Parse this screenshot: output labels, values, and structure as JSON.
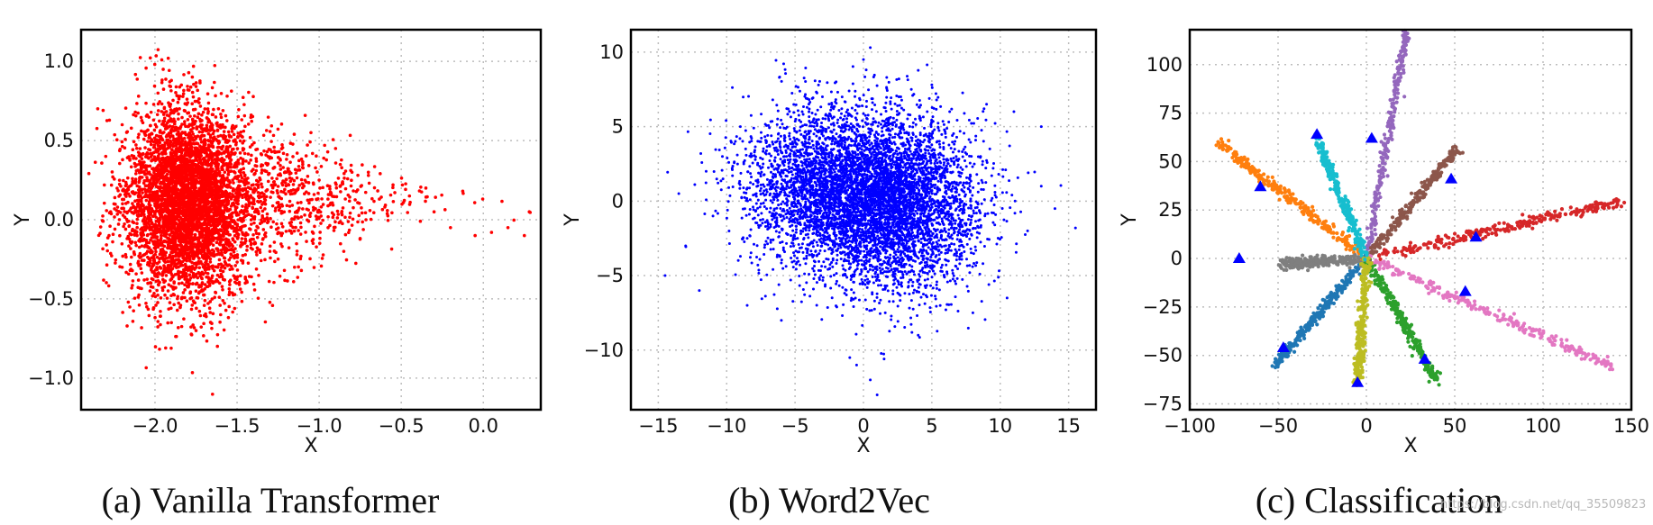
{
  "watermark": "https://blog.csdn.net/qq_35509823",
  "chart_data": [
    {
      "type": "scatter",
      "caption": "(a) Vanilla Transformer",
      "xlabel": "X",
      "ylabel": "Y",
      "xlim": [
        -2.45,
        0.35
      ],
      "ylim": [
        -1.2,
        1.2
      ],
      "xticks": [
        -2.0,
        -1.5,
        -1.0,
        -0.5,
        0.0
      ],
      "xtick_labels": [
        "−2.0",
        "−1.5",
        "−1.0",
        "−0.5",
        "0.0"
      ],
      "yticks": [
        1.0,
        0.5,
        0.0,
        -0.5,
        -1.0
      ],
      "ytick_labels": [
        "1.0",
        "0.5",
        "0.0",
        "−0.5",
        "−1.0"
      ],
      "grid": true,
      "color": "#ff0000",
      "series": [
        {
          "color": "#ff0000",
          "points": [
            [
              -1.95,
              0.95
            ],
            [
              -1.9,
              0.88
            ],
            [
              -2.1,
              0.78
            ],
            [
              -1.8,
              0.82
            ],
            [
              -2.2,
              0.6
            ],
            [
              -2.3,
              0.4
            ],
            [
              -2.25,
              0.1
            ],
            [
              -2.28,
              -0.1
            ],
            [
              -2.2,
              -0.3
            ],
            [
              -2.05,
              -0.55
            ],
            [
              -1.9,
              -0.65
            ],
            [
              -1.75,
              -0.7
            ],
            [
              -1.6,
              -0.6
            ],
            [
              -1.45,
              -0.4
            ],
            [
              -1.3,
              -0.2
            ],
            [
              -1.2,
              0.3
            ],
            [
              -1.1,
              0.35
            ],
            [
              -1.0,
              0.25
            ],
            [
              -0.8,
              0.3
            ],
            [
              -0.7,
              0.28
            ],
            [
              -0.55,
              0.22
            ],
            [
              -0.45,
              0.15
            ],
            [
              -0.3,
              0.05
            ],
            [
              -0.2,
              -0.05
            ],
            [
              -0.05,
              -0.1
            ],
            [
              0.05,
              -0.08
            ],
            [
              0.15,
              -0.05
            ],
            [
              0.25,
              -0.1
            ],
            [
              0.28,
              0.05
            ],
            [
              -0.9,
              0.45
            ],
            [
              -1.05,
              0.55
            ],
            [
              -0.85,
              -0.2
            ],
            [
              -1.15,
              -0.3
            ],
            [
              -0.6,
              0.08
            ],
            [
              -0.35,
              0.2
            ]
          ]
        }
      ]
    },
    {
      "type": "scatter",
      "caption": "(b) Word2Vec",
      "xlabel": "X",
      "ylabel": "Y",
      "xlim": [
        -17,
        17
      ],
      "ylim": [
        -14,
        11.5
      ],
      "xticks": [
        -15,
        -10,
        -5,
        0,
        5,
        10,
        15
      ],
      "xtick_labels": [
        "−15",
        "−10",
        "−5",
        "0",
        "5",
        "10",
        "15"
      ],
      "yticks": [
        10,
        5,
        0,
        -5,
        -10
      ],
      "ytick_labels": [
        "10",
        "5",
        "0",
        "−5",
        "−10"
      ],
      "grid": true,
      "color": "#0000ff",
      "series": [
        {
          "color": "#0000ff",
          "points": [
            [
              0.5,
              10.3
            ],
            [
              0.2,
              8.8
            ],
            [
              -2,
              8
            ],
            [
              3.5,
              7.5
            ],
            [
              -14.5,
              -5
            ],
            [
              -13,
              -3
            ],
            [
              -12,
              -6
            ],
            [
              -11.5,
              2
            ],
            [
              -11,
              -1
            ],
            [
              12,
              -2
            ],
            [
              13,
              1
            ],
            [
              14,
              -0.5
            ],
            [
              15.5,
              -1.8
            ],
            [
              13,
              5
            ],
            [
              11,
              6
            ],
            [
              -0.5,
              -11
            ],
            [
              0.5,
              -12
            ],
            [
              1,
              -13
            ],
            [
              -1,
              -10.5
            ],
            [
              4,
              -9
            ],
            [
              -6,
              -8
            ],
            [
              8,
              -7.5
            ],
            [
              -9,
              5
            ],
            [
              9,
              6.5
            ],
            [
              0,
              9.5
            ],
            [
              -3,
              7
            ],
            [
              5,
              7.8
            ],
            [
              -13.5,
              0.5
            ],
            [
              10.5,
              -6.5
            ],
            [
              -8.5,
              -7
            ]
          ]
        }
      ]
    },
    {
      "type": "scatter",
      "caption": "(c) Classification",
      "xlabel": "X",
      "ylabel": "Y",
      "xlim": [
        -100,
        150
      ],
      "ylim": [
        -78,
        118
      ],
      "xticks": [
        -100,
        -50,
        0,
        50,
        100,
        150
      ],
      "xtick_labels": [
        "−100",
        "−50",
        "0",
        "50",
        "100",
        "150"
      ],
      "yticks": [
        100,
        75,
        50,
        25,
        0,
        -25,
        -50,
        -75
      ],
      "ytick_labels": [
        "100",
        "75",
        "50",
        "25",
        "0",
        "−25",
        "−50",
        "−75"
      ],
      "grid": true,
      "series": [
        {
          "color": "#1f77b4",
          "end": [
            -52,
            -55
          ]
        },
        {
          "color": "#ff7f0e",
          "end": [
            -84,
            60
          ]
        },
        {
          "color": "#2ca02c",
          "end": [
            40,
            -63
          ]
        },
        {
          "color": "#d62728",
          "end": [
            145,
            30
          ]
        },
        {
          "color": "#9467bd",
          "end": [
            23,
            118
          ]
        },
        {
          "color": "#8c564b",
          "end": [
            52,
            57
          ]
        },
        {
          "color": "#e377c2",
          "end": [
            140,
            -56
          ]
        },
        {
          "color": "#7f7f7f",
          "end": [
            -48,
            -3
          ]
        },
        {
          "color": "#bcbd22",
          "end": [
            -5,
            -64
          ]
        },
        {
          "color": "#17becf",
          "end": [
            -28,
            62
          ]
        }
      ],
      "markers": {
        "shape": "triangle",
        "color": "#0000ff",
        "points": [
          [
            -72,
            0
          ],
          [
            -60,
            37
          ],
          [
            -28,
            64
          ],
          [
            3,
            62
          ],
          [
            48,
            41
          ],
          [
            62,
            11
          ],
          [
            56,
            -17
          ],
          [
            33,
            -52
          ],
          [
            -5,
            -64
          ],
          [
            -47,
            -46
          ]
        ]
      }
    }
  ]
}
